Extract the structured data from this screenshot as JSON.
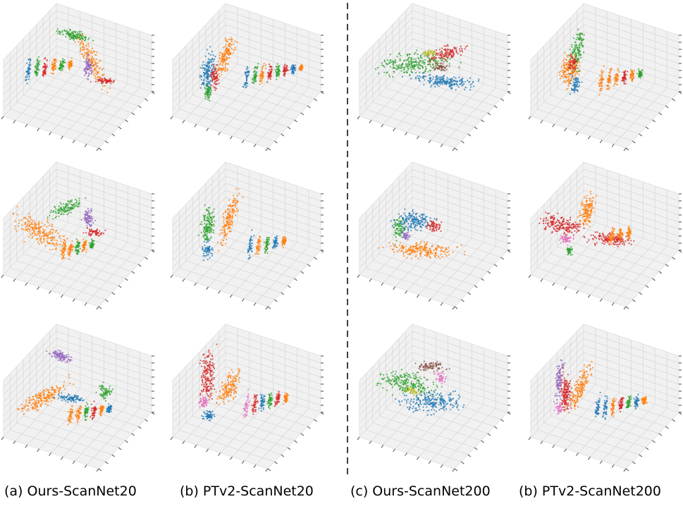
{
  "captions": [
    "(a) Ours-ScanNet20",
    "(b) PTv2-ScanNet20",
    "(c) Ours-ScanNet200",
    "(b) PTv2-ScanNet200"
  ]
}
